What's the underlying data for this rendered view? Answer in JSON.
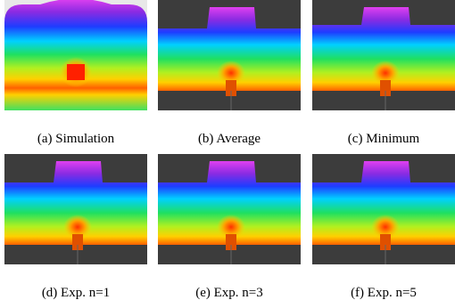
{
  "figure": {
    "subfigures": [
      {
        "caption": "(a) Simulation"
      },
      {
        "caption": "(b) Average"
      },
      {
        "caption": "(c) Minimum"
      },
      {
        "caption": "(d) Exp. n=1"
      },
      {
        "caption": "(e) Exp. n=3"
      },
      {
        "caption": "(f) Exp. n=5"
      }
    ]
  }
}
